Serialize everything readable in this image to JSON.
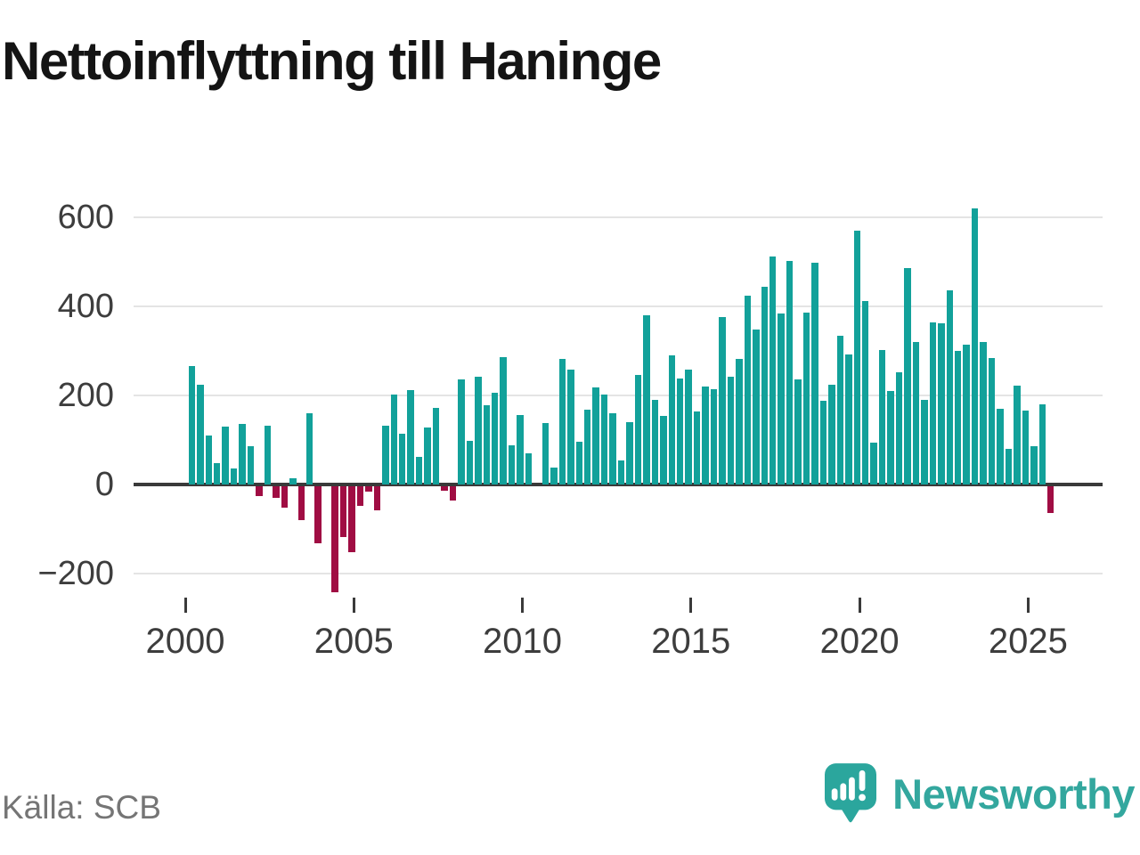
{
  "title": "Nettoinflyttning till Haninge",
  "source": {
    "text": "Källa: SCB"
  },
  "logo": {
    "text": "Newsworthy"
  },
  "colors": {
    "positive": "#12a19a",
    "negative": "#a00d43",
    "gridline": "#e4e4e4",
    "zero_line": "#3a3a3a",
    "axis_text": "#3d3d3d",
    "title_text": "#141414",
    "source_text": "#757575",
    "brand_teal": "#33a79e"
  },
  "chart_data": {
    "type": "bar",
    "title": "Nettoinflyttning till Haninge",
    "xlabel": "",
    "ylabel": "",
    "ylim": [
      -260,
      660
    ],
    "grid": "horizontal",
    "legend": "none",
    "start_year": 2000,
    "start_quarter": 1,
    "frequency": "quarterly",
    "x_tick_labels": [
      "2000",
      "2005",
      "2010",
      "2015",
      "2020",
      "2025"
    ],
    "y_ticks": [
      {
        "label": "600",
        "value": 600
      },
      {
        "label": "400",
        "value": 400
      },
      {
        "label": "200",
        "value": 200
      },
      {
        "label": "0",
        "value": 0
      },
      {
        "label": "−200",
        "value": -200
      }
    ],
    "values": [
      265,
      223,
      110,
      47,
      130,
      35,
      135,
      85,
      -22,
      132,
      -25,
      -48,
      14,
      -76,
      160,
      -127,
      0,
      -237,
      -114,
      -148,
      -43,
      -11,
      -53,
      131,
      201,
      113,
      211,
      62,
      128,
      172,
      -10,
      -32,
      235,
      97,
      241,
      177,
      205,
      285,
      87,
      155,
      70,
      0,
      137,
      37,
      282,
      257,
      95,
      167,
      218,
      202,
      159,
      53,
      140,
      245,
      380,
      190,
      154,
      289,
      238,
      258,
      164,
      220,
      214,
      375,
      242,
      282,
      424,
      348,
      444,
      512,
      383,
      502,
      236,
      386,
      497,
      187,
      223,
      333,
      292,
      570,
      412,
      94,
      302,
      210,
      252,
      485,
      320,
      190,
      364,
      362,
      435,
      300,
      314,
      620,
      319,
      284,
      170,
      80,
      222,
      165,
      85,
      180,
      -60
    ]
  }
}
